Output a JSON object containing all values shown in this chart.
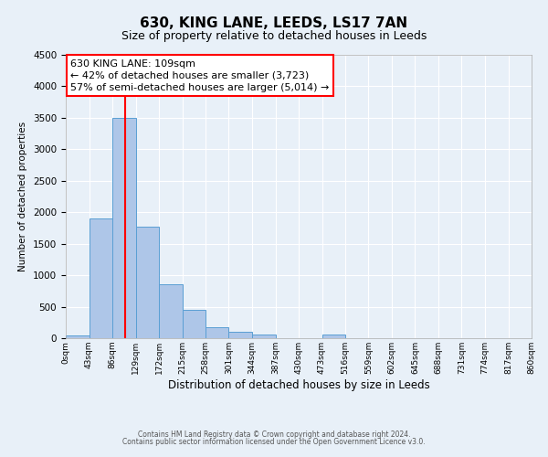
{
  "title": "630, KING LANE, LEEDS, LS17 7AN",
  "subtitle": "Size of property relative to detached houses in Leeds",
  "xlabel": "Distribution of detached houses by size in Leeds",
  "ylabel": "Number of detached properties",
  "bar_edges": [
    0,
    43,
    86,
    129,
    172,
    215,
    258,
    301,
    344,
    387,
    430,
    473,
    516,
    559,
    602,
    645,
    688,
    731,
    774,
    817,
    860
  ],
  "bar_heights": [
    50,
    1900,
    3500,
    1775,
    850,
    450,
    175,
    100,
    55,
    0,
    0,
    60,
    0,
    0,
    0,
    0,
    0,
    0,
    0,
    0
  ],
  "bar_color": "#aec6e8",
  "bar_edge_color": "#5a9fd4",
  "vline_x": 109,
  "vline_color": "red",
  "ylim": [
    0,
    4500
  ],
  "yticks": [
    0,
    500,
    1000,
    1500,
    2000,
    2500,
    3000,
    3500,
    4000,
    4500
  ],
  "annotation_title": "630 KING LANE: 109sqm",
  "annotation_line1": "← 42% of detached houses are smaller (3,723)",
  "annotation_line2": "57% of semi-detached houses are larger (5,014) →",
  "annotation_box_color": "#ffffff",
  "annotation_box_edge_color": "red",
  "tick_labels": [
    "0sqm",
    "43sqm",
    "86sqm",
    "129sqm",
    "172sqm",
    "215sqm",
    "258sqm",
    "301sqm",
    "344sqm",
    "387sqm",
    "430sqm",
    "473sqm",
    "516sqm",
    "559sqm",
    "602sqm",
    "645sqm",
    "688sqm",
    "731sqm",
    "774sqm",
    "817sqm",
    "860sqm"
  ],
  "footer1": "Contains HM Land Registry data © Crown copyright and database right 2024.",
  "footer2": "Contains public sector information licensed under the Open Government Licence v3.0.",
  "background_color": "#e8f0f8",
  "grid_color": "#ffffff",
  "title_fontsize": 11,
  "subtitle_fontsize": 9,
  "annotation_fontsize": 8
}
